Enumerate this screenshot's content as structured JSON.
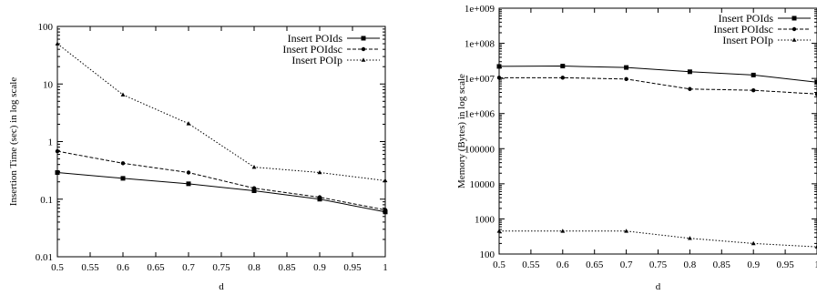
{
  "chart_data": [
    {
      "type": "line",
      "xlabel": "d",
      "ylabel": "Insertion Time (sec) in log scale",
      "yscale": "log",
      "xlim": [
        0.5,
        1.0
      ],
      "ylim": [
        0.01,
        100
      ],
      "x": [
        0.5,
        0.6,
        0.7,
        0.8,
        0.9,
        1.0
      ],
      "x_ticks": [
        "0.5",
        "0.55",
        "0.6",
        "0.65",
        "0.7",
        "0.75",
        "0.8",
        "0.85",
        "0.9",
        "0.95",
        "1"
      ],
      "y_ticks": [
        "0.01",
        "0.1",
        "1",
        "10",
        "100"
      ],
      "legend_position": "top-right",
      "series": [
        {
          "name": "Insert POIds",
          "marker": "square",
          "dash": "solid",
          "values": [
            0.29,
            0.23,
            0.185,
            0.14,
            0.1,
            0.06
          ]
        },
        {
          "name": "Insert POIdsc",
          "marker": "circle",
          "dash": "dashed",
          "values": [
            0.68,
            0.42,
            0.29,
            0.155,
            0.108,
            0.065
          ]
        },
        {
          "name": "Insert POIp",
          "marker": "triangle",
          "dash": "dotted",
          "values": [
            50,
            6.5,
            2.05,
            0.36,
            0.29,
            0.21
          ]
        }
      ]
    },
    {
      "type": "line",
      "xlabel": "d",
      "ylabel": "Memory (Bytes) in log scale",
      "yscale": "log",
      "xlim": [
        0.5,
        1.0
      ],
      "ylim": [
        100,
        1000000000
      ],
      "x": [
        0.5,
        0.6,
        0.7,
        0.8,
        0.9,
        1.0
      ],
      "x_ticks": [
        "0.5",
        "0.55",
        "0.6",
        "0.65",
        "0.7",
        "0.75",
        "0.8",
        "0.85",
        "0.9",
        "0.95",
        "1"
      ],
      "y_ticks": [
        "100",
        "1000",
        "10000",
        "100000",
        "1e+006",
        "1e+007",
        "1e+008",
        "1e+009"
      ],
      "legend_position": "top-right",
      "series": [
        {
          "name": "Insert POIds",
          "marker": "square",
          "dash": "solid",
          "values": [
            22000000,
            22500000,
            20500000,
            15500000,
            12500000,
            7800000
          ]
        },
        {
          "name": "Insert POIdsc",
          "marker": "circle",
          "dash": "dashed",
          "values": [
            10500000,
            10500000,
            9600000,
            5000000,
            4600000,
            3600000
          ]
        },
        {
          "name": "Insert POIp",
          "marker": "triangle",
          "dash": "dotted",
          "values": [
            450,
            450,
            450,
            280,
            200,
            160
          ]
        }
      ]
    }
  ]
}
